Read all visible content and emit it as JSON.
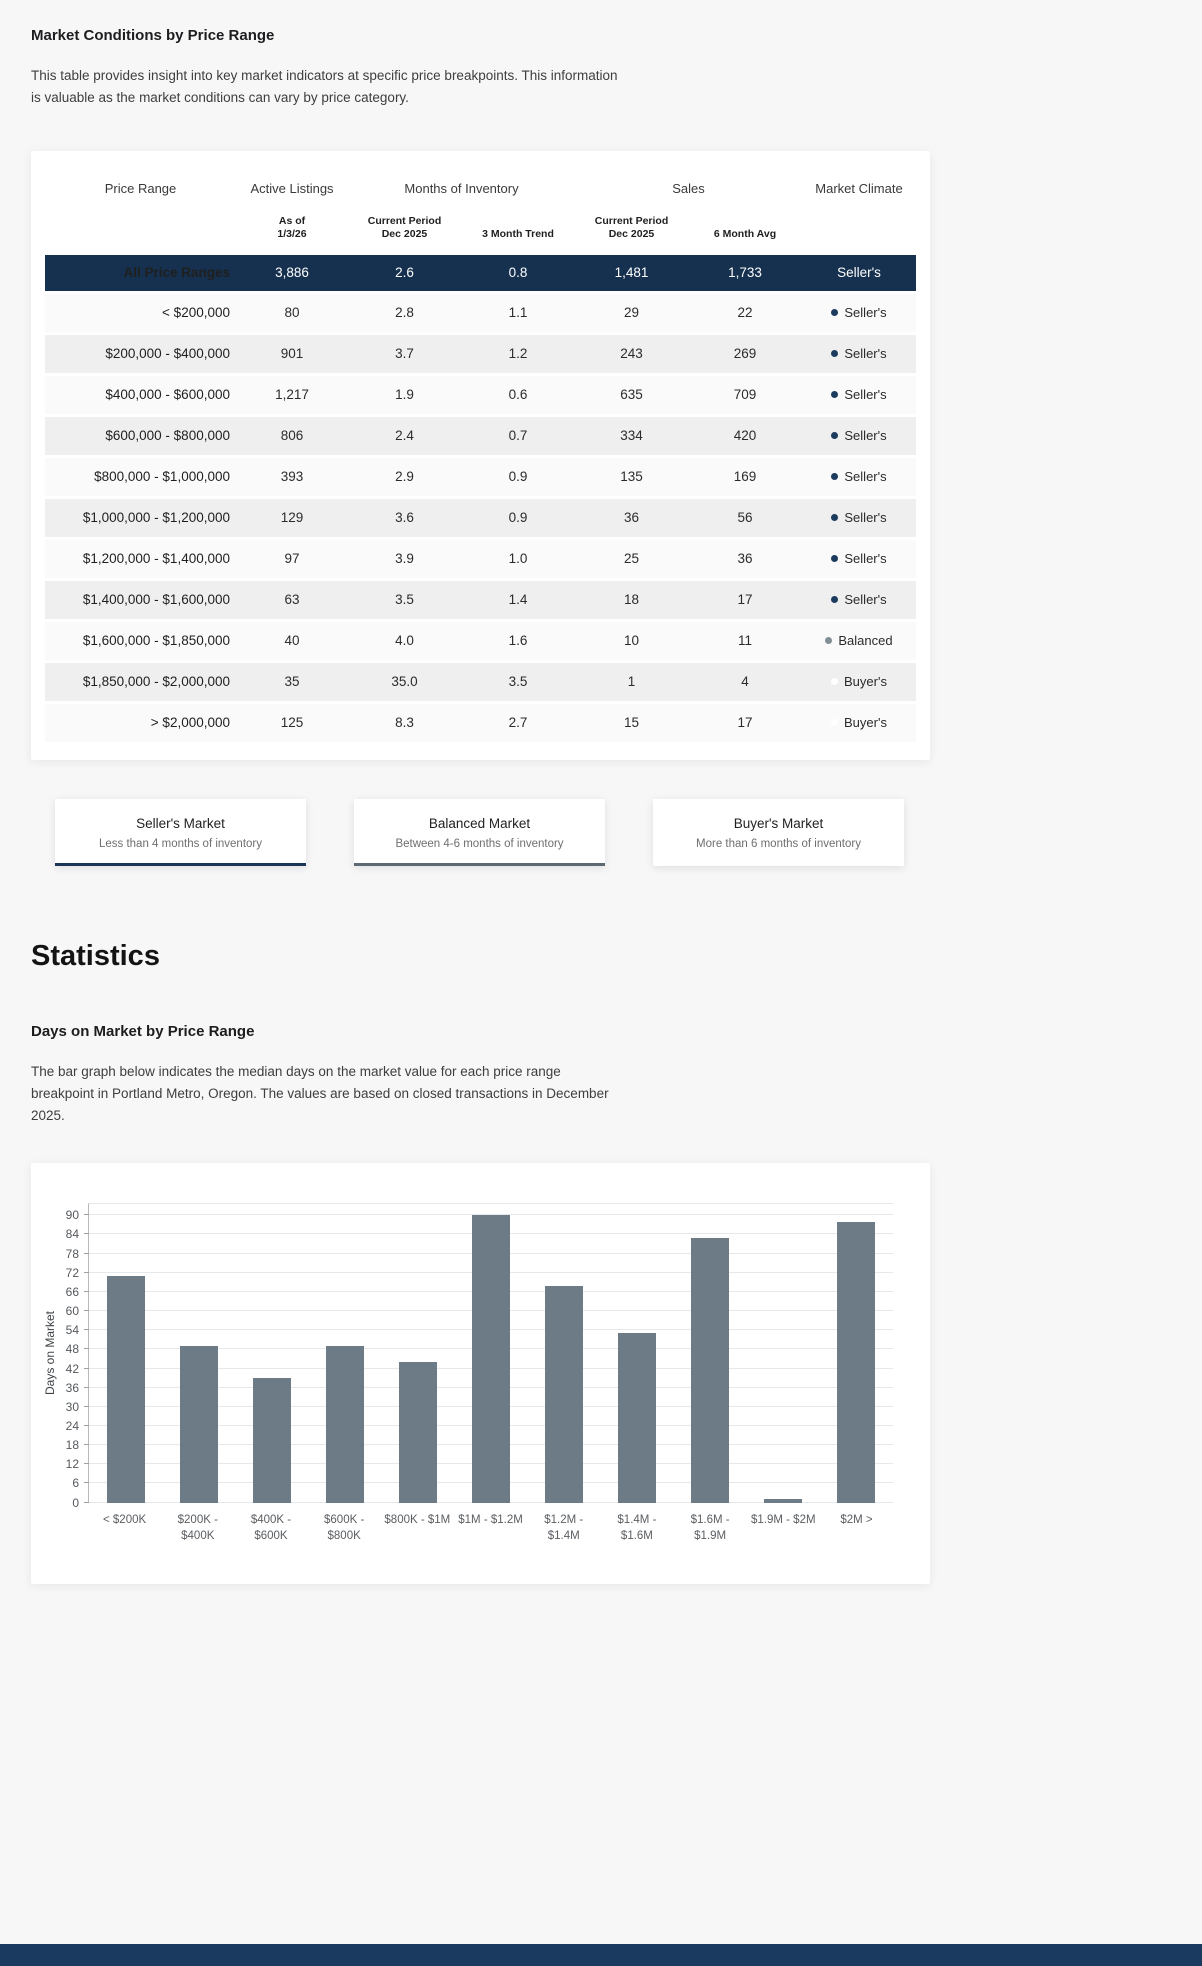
{
  "page": {
    "section1_title": "Market Conditions by Price Range",
    "section1_desc": "This table provides insight into key market indicators at specific price breakpoints. This information is valuable as the market conditions can vary by price category.",
    "statistics_title": "Statistics",
    "section2_title": "Days on Market by Price Range",
    "section2_desc": "The bar graph below indicates the median days on the market value for each price range breakpoint in Portland Metro, Oregon. The values are based on closed transactions in December 2025."
  },
  "table": {
    "group_headers": [
      "Price Range",
      "Active Listings",
      "Months of Inventory",
      "Sales",
      "Market Climate"
    ],
    "sub_headers": {
      "as_of": "As of\n1/3/26",
      "moi_current": "Current Period\nDec 2025",
      "trend": "3 Month Trend",
      "sales_current": "Current Period\nDec 2025",
      "avg": "6 Month Avg"
    },
    "summary_row": {
      "label": "All Price Ranges",
      "active": "3,886",
      "moi_current": "2.6",
      "moi_trend": "0.8",
      "sales_current": "1,481",
      "sales_avg": "1,733",
      "climate": "Seller's"
    },
    "rows": [
      {
        "label": "< $200,000",
        "active": "80",
        "moi_current": "2.8",
        "moi_trend": "1.1",
        "sales_current": "29",
        "sales_avg": "22",
        "climate": "Seller's",
        "dot": "seller"
      },
      {
        "label": "$200,000 - $400,000",
        "active": "901",
        "moi_current": "3.7",
        "moi_trend": "1.2",
        "sales_current": "243",
        "sales_avg": "269",
        "climate": "Seller's",
        "dot": "seller"
      },
      {
        "label": "$400,000 - $600,000",
        "active": "1,217",
        "moi_current": "1.9",
        "moi_trend": "0.6",
        "sales_current": "635",
        "sales_avg": "709",
        "climate": "Seller's",
        "dot": "seller"
      },
      {
        "label": "$600,000 - $800,000",
        "active": "806",
        "moi_current": "2.4",
        "moi_trend": "0.7",
        "sales_current": "334",
        "sales_avg": "420",
        "climate": "Seller's",
        "dot": "seller"
      },
      {
        "label": "$800,000 - $1,000,000",
        "active": "393",
        "moi_current": "2.9",
        "moi_trend": "0.9",
        "sales_current": "135",
        "sales_avg": "169",
        "climate": "Seller's",
        "dot": "seller"
      },
      {
        "label": "$1,000,000 - $1,200,000",
        "active": "129",
        "moi_current": "3.6",
        "moi_trend": "0.9",
        "sales_current": "36",
        "sales_avg": "56",
        "climate": "Seller's",
        "dot": "seller"
      },
      {
        "label": "$1,200,000 - $1,400,000",
        "active": "97",
        "moi_current": "3.9",
        "moi_trend": "1.0",
        "sales_current": "25",
        "sales_avg": "36",
        "climate": "Seller's",
        "dot": "seller"
      },
      {
        "label": "$1,400,000 - $1,600,000",
        "active": "63",
        "moi_current": "3.5",
        "moi_trend": "1.4",
        "sales_current": "18",
        "sales_avg": "17",
        "climate": "Seller's",
        "dot": "seller"
      },
      {
        "label": "$1,600,000 - $1,850,000",
        "active": "40",
        "moi_current": "4.0",
        "moi_trend": "1.6",
        "sales_current": "10",
        "sales_avg": "11",
        "climate": "Balanced",
        "dot": "balanced"
      },
      {
        "label": "$1,850,000 - $2,000,000",
        "active": "35",
        "moi_current": "35.0",
        "moi_trend": "3.5",
        "sales_current": "1",
        "sales_avg": "4",
        "climate": "Buyer's",
        "dot": "buyer"
      },
      {
        "label": "> $2,000,000",
        "active": "125",
        "moi_current": "8.3",
        "moi_trend": "2.7",
        "sales_current": "15",
        "sales_avg": "17",
        "climate": "Buyer's",
        "dot": "buyer"
      }
    ]
  },
  "legend_cards": [
    {
      "title": "Seller's Market",
      "subtitle": "Less than 4 months of inventory",
      "accent": "#1c3556"
    },
    {
      "title": "Balanced Market",
      "subtitle": "Between 4-6 months of inventory",
      "accent": "#5d6972"
    },
    {
      "title": "Buyer's Market",
      "subtitle": "More than 6 months of inventory",
      "accent": "#ffffff"
    }
  ],
  "climate_colors": {
    "seller": "#1c3b5e",
    "balanced": "#828e96",
    "buyer": "#ffffff"
  },
  "colors": {
    "navy": "#16314f",
    "footer": "#1b3a5f",
    "bar": "#6d7b86",
    "page_bg": "#f7f7f8"
  },
  "chart_data": {
    "type": "bar",
    "title": "Days on Market by Price Range",
    "categories": [
      "< $200K",
      "$200K - $400K",
      "$400K - $600K",
      "$600K - $800K",
      "$800K - $1M",
      "$1M - $1.2M",
      "$1.2M - $1.4M",
      "$1.4M - $1.6M",
      "$1.6M - $1.9M",
      "$1.9M - $2M",
      "$2M >"
    ],
    "values": [
      71,
      49,
      39,
      49,
      44,
      90,
      68,
      53,
      83,
      1,
      88
    ],
    "xlabel": "",
    "ylabel": "Days on Market",
    "ylim": [
      0,
      94
    ],
    "ytick_step": 6,
    "ytick_max": 90,
    "grid": true,
    "legend_position": "none",
    "bar_color": "#6d7b86"
  }
}
